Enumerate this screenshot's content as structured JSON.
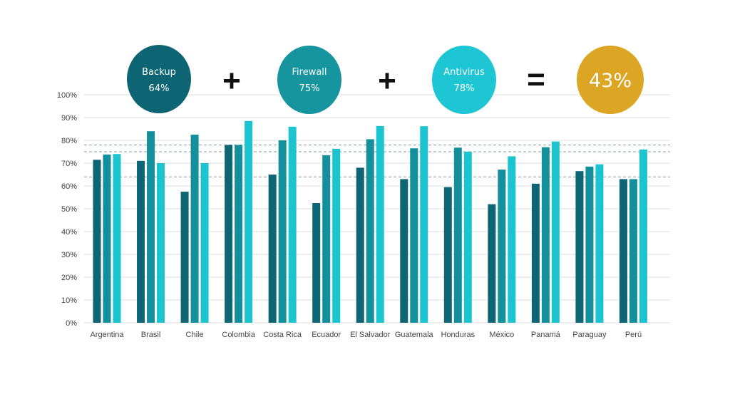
{
  "summary": {
    "items": [
      {
        "label": "Backup",
        "value": "64%",
        "color": "#0d6573"
      },
      {
        "label": "Firewall",
        "value": "75%",
        "color": "#17959e"
      },
      {
        "label": "Antivirus",
        "value": "78%",
        "color": "#1ec6d4"
      }
    ],
    "operators": [
      "+",
      "+",
      "="
    ],
    "result": {
      "value": "43%",
      "color": "#dca524"
    }
  },
  "chart_data": {
    "type": "bar",
    "title": "",
    "xlabel": "",
    "ylabel": "",
    "ylim": [
      0,
      100
    ],
    "yticks": [
      "0%",
      "10%",
      "20%",
      "30%",
      "40%",
      "50%",
      "60%",
      "70%",
      "80%",
      "90%",
      "100%"
    ],
    "categories": [
      "Argentina",
      "Brasil",
      "Chile",
      "Colombia",
      "Costa Rica",
      "Ecuador",
      "El Salvador",
      "Guatemala",
      "Honduras",
      "México",
      "Panamá",
      "Paraguay",
      "Perú"
    ],
    "series": [
      {
        "name": "Backup",
        "color": "#0e6674",
        "values": [
          71.5,
          71,
          57.5,
          78,
          65,
          52.5,
          68,
          63,
          59.5,
          52,
          61,
          66.5,
          63
        ]
      },
      {
        "name": "Firewall",
        "color": "#14909c",
        "values": [
          73.8,
          84,
          82.5,
          78,
          80,
          73.5,
          80.5,
          76.5,
          76.8,
          67.2,
          77,
          68.5,
          63
        ]
      },
      {
        "name": "Antivirus",
        "color": "#1cc4d0",
        "values": [
          74,
          70,
          70,
          88.5,
          86,
          76.3,
          86.3,
          86.2,
          75,
          73,
          79.5,
          69.5,
          76
        ]
      }
    ],
    "reference_lines": [
      {
        "name": "Backup average",
        "value": 64
      },
      {
        "name": "Firewall average",
        "value": 75
      },
      {
        "name": "Antivirus average",
        "value": 78
      }
    ],
    "grid": true,
    "legend": "top"
  }
}
